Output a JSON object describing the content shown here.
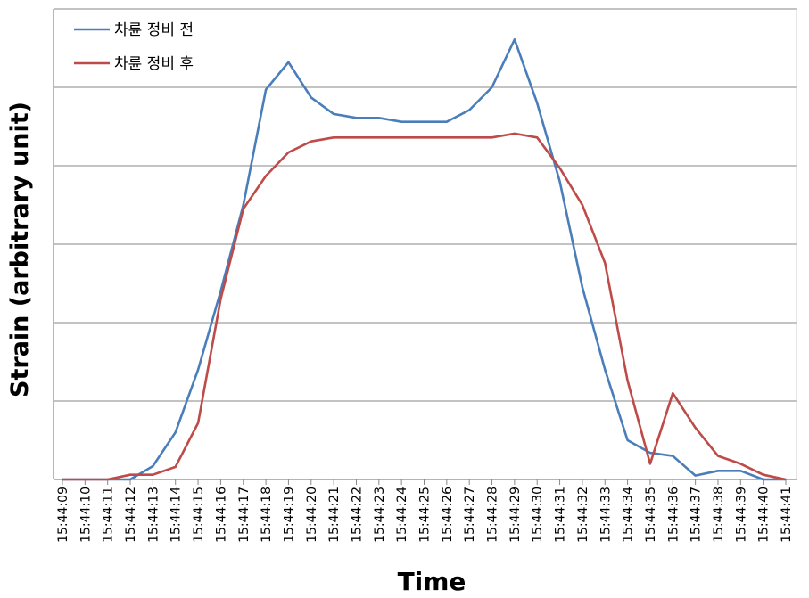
{
  "chart_data": {
    "type": "line",
    "xlabel": "Time",
    "ylabel": "Strain (arbitrary unit)",
    "ylim": [
      0,
      6
    ],
    "y_grid": true,
    "y_tick_labels_shown": false,
    "legend_position": "top-left",
    "x": [
      "15:44:09",
      "15:44:10",
      "15:44:11",
      "15:44:12",
      "15:44:13",
      "15:44:14",
      "15:44:15",
      "15:44:16",
      "15:44:17",
      "15:44:18",
      "15:44:19",
      "15:44:20",
      "15:44:21",
      "15:44:22",
      "15:44:23",
      "15:44:24",
      "15:44:25",
      "15:44:26",
      "15:44:27",
      "15:44:28",
      "15:44:29",
      "15:44:30",
      "15:44:31",
      "15:44:32",
      "15:44:33",
      "15:44:34",
      "15:44:35",
      "15:44:36",
      "15:44:37",
      "15:44:38",
      "15:44:39",
      "15:44:40",
      "15:44:41"
    ],
    "series": [
      {
        "name": "차륜 정비 전",
        "color": "#4a7ebb",
        "values": [
          0,
          0,
          0,
          0,
          0.17,
          0.6,
          1.4,
          2.4,
          3.5,
          4.97,
          5.32,
          4.87,
          4.66,
          4.61,
          4.61,
          4.56,
          4.56,
          4.56,
          4.71,
          5.0,
          5.61,
          4.8,
          3.8,
          2.45,
          1.4,
          0.5,
          0.34,
          0.3,
          0.05,
          0.11,
          0.11,
          0,
          0
        ]
      },
      {
        "name": "차륜 정비 후",
        "color": "#be4b48",
        "values": [
          0,
          0,
          0,
          0.06,
          0.06,
          0.16,
          0.72,
          2.3,
          3.45,
          3.87,
          4.17,
          4.31,
          4.36,
          4.36,
          4.36,
          4.36,
          4.36,
          4.36,
          4.36,
          4.36,
          4.41,
          4.36,
          3.97,
          3.5,
          2.76,
          1.26,
          0.2,
          1.1,
          0.66,
          0.3,
          0.2,
          0.06,
          0
        ]
      }
    ]
  }
}
